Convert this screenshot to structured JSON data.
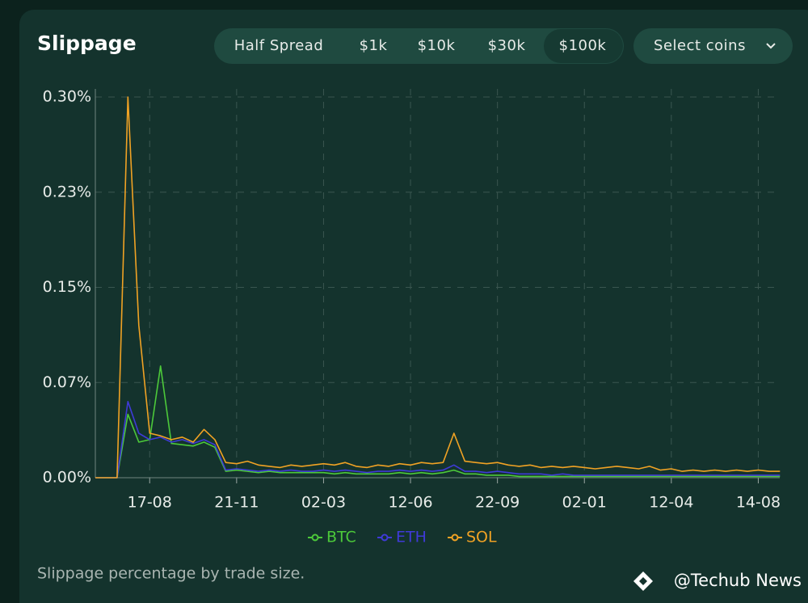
{
  "ui": {
    "title": "Slippage",
    "buttons": [
      "Half Spread",
      "$1k",
      "$10k",
      "$30k",
      "$100k"
    ],
    "selected_button": 4,
    "select": "Select coins",
    "caption": "Slippage percentage by trade size.",
    "watermark": "@Techub News"
  },
  "chart_data": {
    "type": "line",
    "categories": [
      null,
      null,
      null,
      null,
      null,
      "17-08",
      null,
      null,
      null,
      null,
      null,
      null,
      null,
      "21-11",
      null,
      null,
      null,
      null,
      null,
      null,
      null,
      "02-03",
      null,
      null,
      null,
      null,
      null,
      null,
      null,
      "12-06",
      null,
      null,
      null,
      null,
      null,
      null,
      null,
      "22-09",
      null,
      null,
      null,
      null,
      null,
      null,
      null,
      "02-01",
      null,
      null,
      null,
      null,
      null,
      null,
      null,
      "12-04",
      null,
      null,
      null,
      null,
      null,
      null,
      null,
      "14-08",
      null,
      null
    ],
    "series": [
      {
        "name": "BTC",
        "color": "#4cc93a",
        "values": [
          0,
          0,
          0,
          0.05,
          0.028,
          0.03,
          0.088,
          0.027,
          0.026,
          0.025,
          0.028,
          0.024,
          0.005,
          0.006,
          0.005,
          0.004,
          0.005,
          0.004,
          0.004,
          0.004,
          0.004,
          0.004,
          0.003,
          0.004,
          0.003,
          0.003,
          0.003,
          0.003,
          0.004,
          0.003,
          0.004,
          0.003,
          0.004,
          0.006,
          0.003,
          0.003,
          0.002,
          0.002,
          0.002,
          0.001,
          0.001,
          0.001,
          0.001,
          0.001,
          0.001,
          0.001,
          0.001,
          0.001,
          0.001,
          0.001,
          0.001,
          0.001,
          0.001,
          0.001,
          0.001,
          0.001,
          0.001,
          0.001,
          0.001,
          0.001,
          0.001,
          0.001,
          0.001,
          0.001
        ]
      },
      {
        "name": "ETH",
        "color": "#3f3ad8",
        "values": [
          0,
          0,
          0,
          0.06,
          0.035,
          0.03,
          0.032,
          0.028,
          0.03,
          0.027,
          0.03,
          0.026,
          0.006,
          0.007,
          0.006,
          0.005,
          0.006,
          0.005,
          0.006,
          0.005,
          0.005,
          0.006,
          0.005,
          0.006,
          0.005,
          0.004,
          0.005,
          0.005,
          0.006,
          0.005,
          0.006,
          0.005,
          0.006,
          0.01,
          0.005,
          0.005,
          0.004,
          0.005,
          0.004,
          0.003,
          0.003,
          0.003,
          0.002,
          0.003,
          0.002,
          0.002,
          0.002,
          0.002,
          0.002,
          0.002,
          0.002,
          0.002,
          0.002,
          0.002,
          0.002,
          0.002,
          0.002,
          0.002,
          0.002,
          0.002,
          0.002,
          0.002,
          0.002,
          0.002
        ]
      },
      {
        "name": "SOL",
        "color": "#f0a224",
        "values": [
          0,
          0,
          0,
          0.3,
          0.12,
          0.035,
          0.033,
          0.03,
          0.032,
          0.028,
          0.038,
          0.03,
          0.012,
          0.011,
          0.013,
          0.01,
          0.009,
          0.008,
          0.01,
          0.009,
          0.01,
          0.011,
          0.01,
          0.012,
          0.009,
          0.008,
          0.01,
          0.009,
          0.011,
          0.01,
          0.012,
          0.011,
          0.012,
          0.035,
          0.013,
          0.012,
          0.011,
          0.012,
          0.01,
          0.009,
          0.01,
          0.008,
          0.009,
          0.008,
          0.009,
          0.008,
          0.007,
          0.008,
          0.009,
          0.008,
          0.007,
          0.009,
          0.006,
          0.007,
          0.005,
          0.006,
          0.005,
          0.006,
          0.005,
          0.006,
          0.005,
          0.006,
          0.005,
          0.005
        ]
      }
    ],
    "ylim": [
      0,
      0.3
    ],
    "yticks": [
      {
        "value": 0,
        "label": "0.00%"
      },
      {
        "value": 0.075,
        "label": "0.07%"
      },
      {
        "value": 0.15,
        "label": "0.15%"
      },
      {
        "value": 0.225,
        "label": "0.23%"
      },
      {
        "value": 0.3,
        "label": "0.30%"
      }
    ],
    "grid": true
  }
}
